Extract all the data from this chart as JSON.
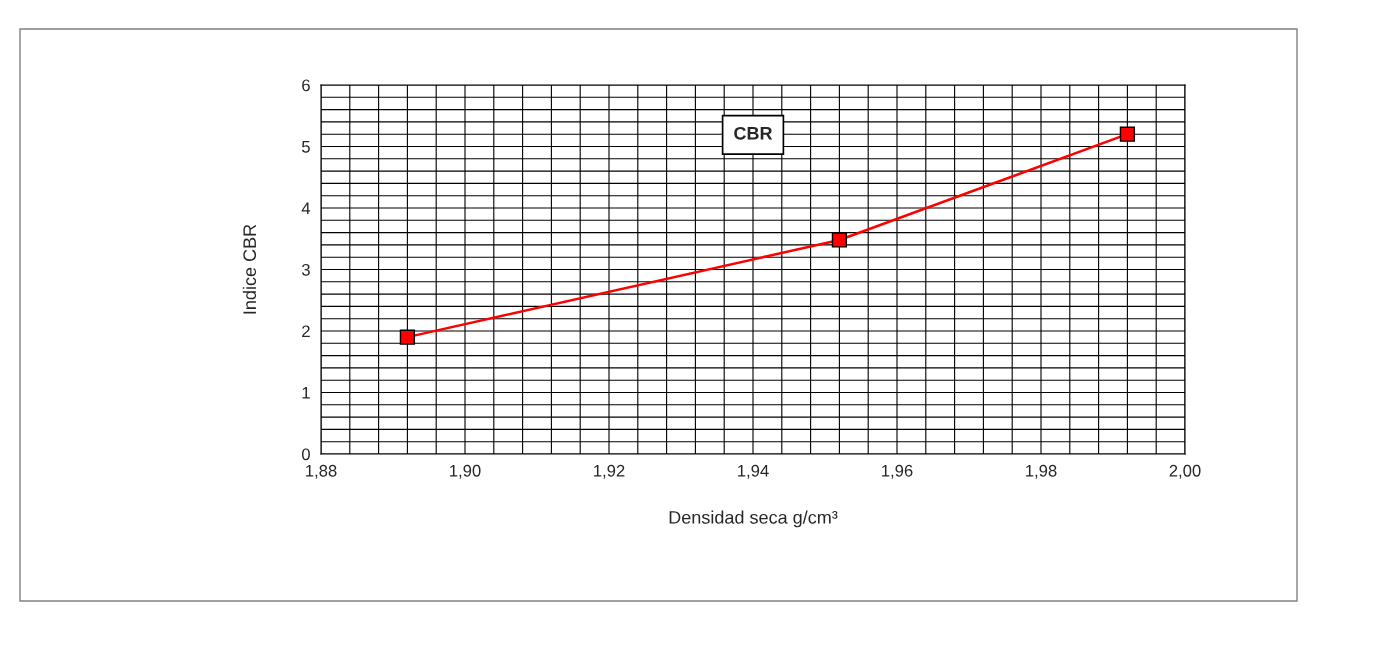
{
  "chart_data": {
    "type": "line",
    "title": "CBR",
    "xlabel": "Densidad seca g/cm³",
    "ylabel": "Indice CBR",
    "x": [
      1.892,
      1.952,
      1.992
    ],
    "series": [
      {
        "color": "#ff0000",
        "values": [
          1.9,
          3.48,
          5.2
        ]
      }
    ],
    "marker": "square",
    "line_style": "solid",
    "xlim": [
      1.88,
      2.0
    ],
    "xticks": [
      {
        "value": 1.88,
        "label": "1,88"
      },
      {
        "value": 1.9,
        "label": "1,90"
      },
      {
        "value": 1.92,
        "label": "1,92"
      },
      {
        "value": 1.94,
        "label": "1,94"
      },
      {
        "value": 1.96,
        "label": "1,96"
      },
      {
        "value": 1.98,
        "label": "1,98"
      },
      {
        "value": 2.0,
        "label": "2,00"
      }
    ],
    "ylim": [
      0,
      6
    ],
    "yticks": [
      0,
      1,
      2,
      3,
      4,
      5,
      6
    ],
    "grid": true
  }
}
